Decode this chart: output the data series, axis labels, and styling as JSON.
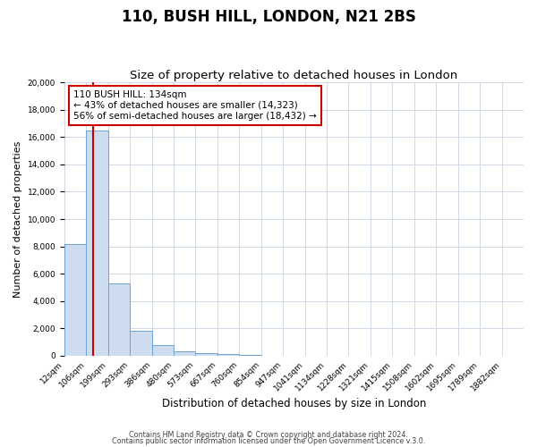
{
  "title": "110, BUSH HILL, LONDON, N21 2BS",
  "subtitle": "Size of property relative to detached houses in London",
  "xlabel": "Distribution of detached houses by size in London",
  "ylabel": "Number of detached properties",
  "bin_labels": [
    "12sqm",
    "106sqm",
    "199sqm",
    "293sqm",
    "386sqm",
    "480sqm",
    "573sqm",
    "667sqm",
    "760sqm",
    "854sqm",
    "947sqm",
    "1041sqm",
    "1134sqm",
    "1228sqm",
    "1321sqm",
    "1415sqm",
    "1508sqm",
    "1602sqm",
    "1695sqm",
    "1789sqm",
    "1882sqm"
  ],
  "bar_heights": [
    8200,
    16500,
    5300,
    1850,
    800,
    300,
    200,
    100,
    80,
    0,
    0,
    0,
    0,
    0,
    0,
    0,
    0,
    0,
    0,
    0,
    0
  ],
  "bar_color": "#cddcee",
  "bar_edge_color": "#6ea3d0",
  "vline_color": "#cc0000",
  "annotation_box_text": "110 BUSH HILL: 134sqm\n← 43% of detached houses are smaller (14,323)\n56% of semi-detached houses are larger (18,432) →",
  "annotation_box_color": "#ffffff",
  "annotation_box_edge_color": "#cc0000",
  "ylim": [
    0,
    20000
  ],
  "yticks": [
    0,
    2000,
    4000,
    6000,
    8000,
    10000,
    12000,
    14000,
    16000,
    18000,
    20000
  ],
  "footer_line1": "Contains HM Land Registry data © Crown copyright and database right 2024.",
  "footer_line2": "Contains public sector information licensed under the Open Government Licence v.3.0.",
  "background_color": "#ffffff",
  "plot_background_color": "#ffffff",
  "title_fontsize": 12,
  "subtitle_fontsize": 9.5,
  "tick_fontsize": 6.5,
  "xlabel_fontsize": 8.5,
  "ylabel_fontsize": 8,
  "annotation_fontsize": 7.5,
  "footer_fontsize": 5.8
}
